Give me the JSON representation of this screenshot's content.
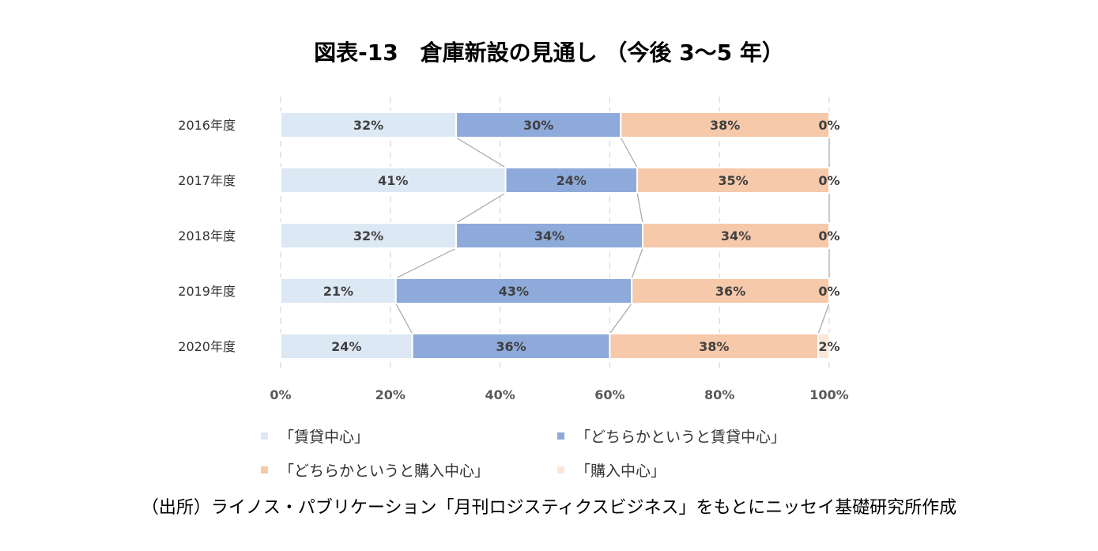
{
  "title": "図表-13　倉庫新設の見通し （今後 3～5 年）",
  "source": "（出所）ライノス・パブリケーション「月刊ロジスティクスビジネス」をもとにニッセイ基礎研究所作成",
  "chart_data": {
    "type": "bar",
    "orientation": "horizontal",
    "stacked": "percent",
    "categories": [
      "2016年度",
      "2017年度",
      "2018年度",
      "2019年度",
      "2020年度"
    ],
    "series": [
      {
        "name": "「賃貸中心」",
        "color": "#dde8f5",
        "values": [
          32,
          41,
          32,
          21,
          24
        ],
        "labels": [
          "32%",
          "41%",
          "32%",
          "21%",
          "24%"
        ]
      },
      {
        "name": "「どちらかというと賃貸中心」",
        "color": "#8eaadb",
        "values": [
          30,
          24,
          34,
          43,
          36
        ],
        "labels": [
          "30%",
          "24%",
          "34%",
          "43%",
          "36%"
        ]
      },
      {
        "name": "「どちらかというと購入中心」",
        "color": "#f6c9aa",
        "values": [
          38,
          35,
          34,
          36,
          38
        ],
        "labels": [
          "38%",
          "35%",
          "34%",
          "36%",
          "38%"
        ]
      },
      {
        "name": "「購入中心」",
        "color": "#fbe6d8",
        "values": [
          0,
          0,
          0,
          0,
          2
        ],
        "labels": [
          "0%",
          "0%",
          "0%",
          "0%",
          "2%"
        ]
      }
    ],
    "xlim": [
      0,
      100
    ],
    "xticks": [
      "0%",
      "20%",
      "40%",
      "60%",
      "80%",
      "100%"
    ],
    "series_lines": true,
    "legend_position": "bottom"
  }
}
